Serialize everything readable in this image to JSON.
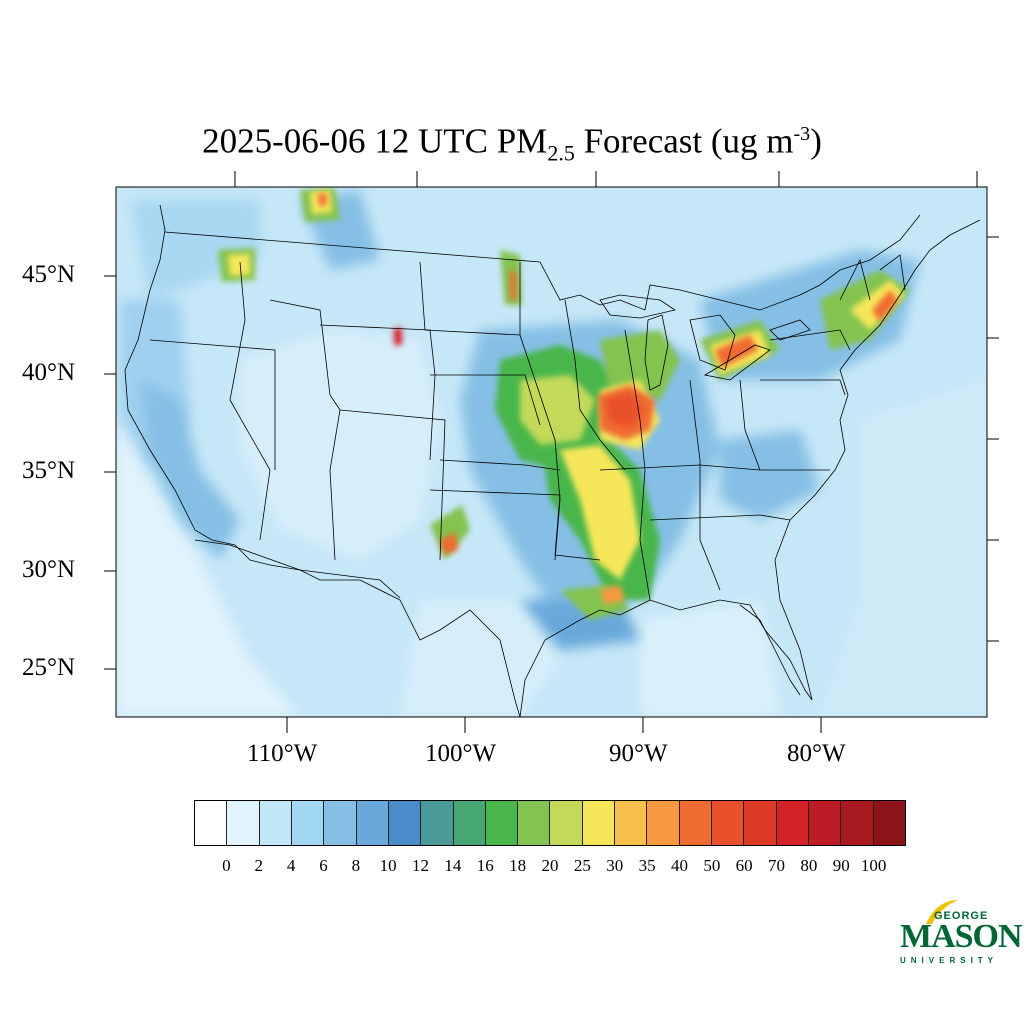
{
  "title": {
    "prefix": "2025-06-06 12 UTC PM",
    "subscript": "2.5",
    "middle": " Forecast (ug m",
    "superscript": "-3",
    "suffix": ")"
  },
  "lat_labels": [
    "45°N",
    "40°N",
    "35°N",
    "30°N",
    "25°N"
  ],
  "lon_labels": [
    "110°W",
    "100°W",
    "90°W",
    "80°W"
  ],
  "colorbar": {
    "colors": [
      "#ffffff",
      "#e1f3fc",
      "#c1e6f8",
      "#a2d7f4",
      "#85bfe5",
      "#68a8da",
      "#4a8bc9",
      "#4a9a9a",
      "#47a774",
      "#49b64b",
      "#83c350",
      "#c2d95a",
      "#f6e75a",
      "#f7bf4c",
      "#f6993f",
      "#f06b30",
      "#e9512c",
      "#de3a28",
      "#d42229",
      "#bc1c24",
      "#a7191f",
      "#8c1419"
    ],
    "labels": [
      "0",
      "2",
      "4",
      "6",
      "8",
      "10",
      "12",
      "14",
      "16",
      "18",
      "20",
      "25",
      "30",
      "35",
      "40",
      "50",
      "60",
      "70",
      "80",
      "90",
      "100"
    ]
  },
  "logo": {
    "line1": "GEORGE",
    "line2": "MASON",
    "line3": "UNIVERSITY"
  }
}
